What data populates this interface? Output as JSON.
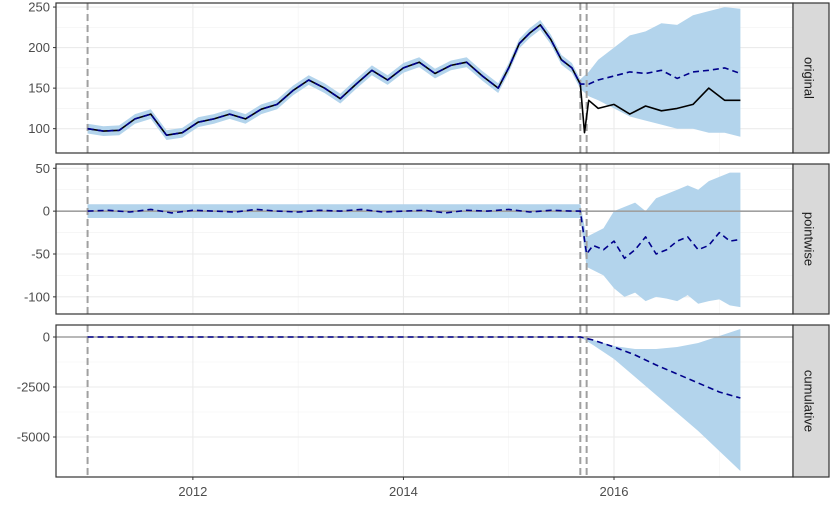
{
  "chart_data": {
    "type": "line",
    "x_unit": "year",
    "x_range": [
      2010.7,
      2017.7
    ],
    "x_ticks": [
      2012,
      2014,
      2016
    ],
    "x_tick_labels": [
      "2012",
      "2014",
      "2016"
    ],
    "vlines": [
      2011.0,
      2015.68,
      2015.74
    ],
    "grid": true,
    "colors": {
      "observed": "#000000",
      "predicted": "#00008b",
      "interval": "#b3d4ec",
      "zero_line": "#a0a0a0",
      "vline": "#a0a0a0",
      "strip_bg": "#d9d9d9"
    },
    "panels": [
      {
        "strip": "original",
        "ylim": [
          70,
          255
        ],
        "y_ticks": [
          100,
          150,
          200,
          250
        ],
        "y_tick_labels": [
          "100",
          "150",
          "200",
          "250"
        ],
        "series": [
          {
            "role": "observed",
            "x": [
              2011.0,
              2011.15,
              2011.3,
              2011.45,
              2011.6,
              2011.75,
              2011.9,
              2012.05,
              2012.2,
              2012.35,
              2012.5,
              2012.65,
              2012.8,
              2012.95,
              2013.1,
              2013.25,
              2013.4,
              2013.55,
              2013.7,
              2013.85,
              2014.0,
              2014.15,
              2014.3,
              2014.45,
              2014.6,
              2014.75,
              2014.9,
              2015.0,
              2015.1,
              2015.2,
              2015.3,
              2015.4,
              2015.5,
              2015.6,
              2015.68,
              2015.72,
              2015.76,
              2015.85,
              2016.0,
              2016.15,
              2016.3,
              2016.45,
              2016.6,
              2016.75,
              2016.9,
              2017.05,
              2017.2
            ],
            "y": [
              100,
              97,
              98,
              112,
              118,
              92,
              95,
              108,
              112,
              118,
              112,
              124,
              130,
              147,
              160,
              150,
              137,
              155,
              172,
              160,
              175,
              182,
              168,
              178,
              182,
              165,
              150,
              175,
              205,
              218,
              228,
              210,
              185,
              175,
              155,
              95,
              135,
              125,
              130,
              118,
              128,
              122,
              125,
              130,
              150,
              135,
              135
            ]
          },
          {
            "role": "predicted",
            "x": [
              2011.0,
              2011.15,
              2011.3,
              2011.45,
              2011.6,
              2011.75,
              2011.9,
              2012.05,
              2012.2,
              2012.35,
              2012.5,
              2012.65,
              2012.8,
              2012.95,
              2013.1,
              2013.25,
              2013.4,
              2013.55,
              2013.7,
              2013.85,
              2014.0,
              2014.15,
              2014.3,
              2014.45,
              2014.6,
              2014.75,
              2014.9,
              2015.0,
              2015.1,
              2015.2,
              2015.3,
              2015.4,
              2015.5,
              2015.6,
              2015.68,
              2015.76,
              2015.85,
              2016.0,
              2016.15,
              2016.3,
              2016.45,
              2016.6,
              2016.75,
              2016.9,
              2017.05,
              2017.2
            ],
            "y": [
              100,
              97,
              98,
              112,
              118,
              92,
              95,
              108,
              112,
              118,
              112,
              124,
              130,
              147,
              160,
              150,
              137,
              155,
              172,
              160,
              175,
              182,
              168,
              178,
              182,
              165,
              150,
              175,
              205,
              218,
              228,
              210,
              185,
              175,
              155,
              155,
              160,
              165,
              170,
              168,
              172,
              162,
              170,
              172,
              175,
              168
            ]
          }
        ],
        "band": {
          "x": [
            2011.0,
            2011.15,
            2011.3,
            2011.45,
            2011.6,
            2011.75,
            2011.9,
            2012.05,
            2012.2,
            2012.35,
            2012.5,
            2012.65,
            2012.8,
            2012.95,
            2013.1,
            2013.25,
            2013.4,
            2013.55,
            2013.7,
            2013.85,
            2014.0,
            2014.15,
            2014.3,
            2014.45,
            2014.6,
            2014.75,
            2014.9,
            2015.0,
            2015.1,
            2015.2,
            2015.3,
            2015.4,
            2015.5,
            2015.6,
            2015.68,
            2015.76,
            2015.85,
            2016.0,
            2016.15,
            2016.3,
            2016.45,
            2016.6,
            2016.75,
            2016.9,
            2017.05,
            2017.2
          ],
          "lower": [
            94,
            91,
            92,
            106,
            112,
            86,
            89,
            102,
            106,
            112,
            106,
            118,
            124,
            141,
            154,
            144,
            131,
            149,
            166,
            154,
            169,
            176,
            162,
            172,
            176,
            159,
            144,
            169,
            199,
            212,
            222,
            204,
            179,
            169,
            149,
            140,
            135,
            125,
            115,
            110,
            105,
            100,
            100,
            95,
            95,
            90
          ],
          "upper": [
            106,
            103,
            104,
            118,
            124,
            98,
            101,
            114,
            118,
            124,
            118,
            130,
            136,
            153,
            166,
            156,
            143,
            161,
            178,
            166,
            181,
            188,
            174,
            184,
            188,
            171,
            156,
            181,
            211,
            224,
            234,
            216,
            191,
            181,
            161,
            170,
            185,
            200,
            215,
            220,
            230,
            228,
            240,
            245,
            250,
            248
          ]
        }
      },
      {
        "strip": "pointwise",
        "ylim": [
          -120,
          55
        ],
        "y_ticks": [
          -100,
          -50,
          0,
          50
        ],
        "y_tick_labels": [
          "-100",
          "-50",
          "0",
          "50"
        ],
        "zero_line": true,
        "series": [
          {
            "role": "predicted",
            "x": [
              2011.0,
              2011.2,
              2011.4,
              2011.6,
              2011.8,
              2012.0,
              2012.2,
              2012.4,
              2012.6,
              2012.8,
              2013.0,
              2013.2,
              2013.4,
              2013.6,
              2013.8,
              2014.0,
              2014.2,
              2014.4,
              2014.6,
              2014.8,
              2015.0,
              2015.2,
              2015.4,
              2015.6,
              2015.68,
              2015.74,
              2015.8,
              2015.9,
              2016.0,
              2016.1,
              2016.2,
              2016.3,
              2016.4,
              2016.5,
              2016.6,
              2016.7,
              2016.8,
              2016.9,
              2017.0,
              2017.1,
              2017.2
            ],
            "y": [
              0,
              1,
              -1,
              2,
              -2,
              1,
              0,
              -1,
              2,
              0,
              -1,
              1,
              0,
              2,
              -1,
              0,
              1,
              -2,
              1,
              0,
              2,
              -1,
              1,
              0,
              0,
              -50,
              -40,
              -45,
              -35,
              -55,
              -45,
              -30,
              -50,
              -45,
              -35,
              -30,
              -45,
              -40,
              -25,
              -35,
              -33
            ]
          }
        ],
        "band": {
          "x": [
            2011.0,
            2015.68,
            2015.74,
            2015.9,
            2016.0,
            2016.1,
            2016.2,
            2016.3,
            2016.4,
            2016.5,
            2016.6,
            2016.7,
            2016.8,
            2016.9,
            2017.0,
            2017.1,
            2017.2
          ],
          "lower": [
            -8,
            -8,
            -65,
            -75,
            -90,
            -100,
            -95,
            -105,
            -100,
            -102,
            -105,
            -98,
            -108,
            -105,
            -103,
            -110,
            -112
          ],
          "upper": [
            8,
            8,
            -30,
            -20,
            0,
            5,
            10,
            0,
            15,
            20,
            25,
            30,
            25,
            35,
            40,
            45,
            45
          ]
        }
      },
      {
        "strip": "cumulative",
        "ylim": [
          -7000,
          600
        ],
        "y_ticks": [
          -5000,
          -2500,
          0
        ],
        "y_tick_labels": [
          "-5000",
          "-2500",
          "0"
        ],
        "zero_line": true,
        "series": [
          {
            "role": "predicted",
            "x": [
              2011.0,
              2015.68,
              2015.8,
              2016.0,
              2016.2,
              2016.4,
              2016.6,
              2016.8,
              2017.0,
              2017.2
            ],
            "y": [
              0,
              0,
              -150,
              -500,
              -900,
              -1400,
              -1850,
              -2300,
              -2750,
              -3050
            ]
          }
        ],
        "band": {
          "x": [
            2011.0,
            2015.68,
            2015.8,
            2016.0,
            2016.2,
            2016.4,
            2016.6,
            2016.8,
            2017.0,
            2017.2
          ],
          "lower": [
            0,
            0,
            -400,
            -1100,
            -2000,
            -2900,
            -3800,
            -4700,
            -5700,
            -6700
          ],
          "upper": [
            0,
            0,
            -150,
            -450,
            -600,
            -600,
            -500,
            -300,
            50,
            400
          ]
        }
      }
    ]
  }
}
